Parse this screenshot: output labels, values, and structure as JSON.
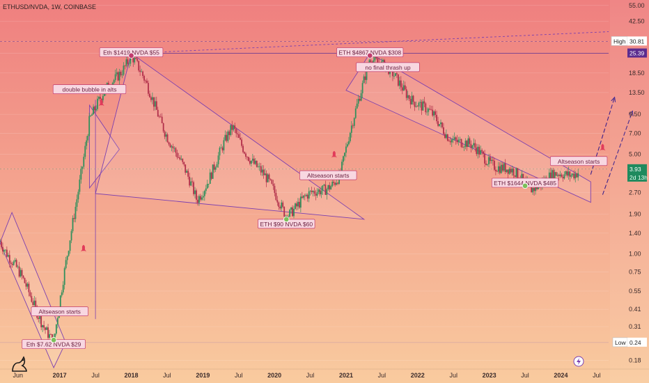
{
  "chart_data": {
    "type": "candlestick",
    "title": "ETHUSD/NVDA, 1W, COINBASE",
    "y_scale": "log",
    "ylim": [
      0.16,
      60
    ],
    "y_ticks": [
      "55.00",
      "42.50",
      "30.81",
      "25.39",
      "18.50",
      "13.50",
      "9.50",
      "7.00",
      "5.00",
      "3.93",
      "2.70",
      "1.90",
      "1.40",
      "1.00",
      "0.75",
      "0.55",
      "0.41",
      "0.31",
      "0.24",
      "0.18"
    ],
    "y_tick_values": [
      55,
      42.5,
      30.81,
      25.39,
      18.5,
      13.5,
      9.5,
      7,
      5,
      3.93,
      2.7,
      1.9,
      1.4,
      1,
      0.75,
      0.55,
      0.41,
      0.31,
      0.24,
      0.18
    ],
    "x_tick_labels": [
      "Jun",
      "2017",
      "Jul",
      "2018",
      "Jul",
      "2019",
      "Jul",
      "2020",
      "Jul",
      "2021",
      "Jul",
      "2022",
      "Jul",
      "2023",
      "Jul",
      "2024",
      "Jul"
    ],
    "x_range": [
      "2016-03",
      "2024-09"
    ],
    "badges": {
      "high_label": "High",
      "high_value": "30.81",
      "line_value": "25.39",
      "last_value": "3.93",
      "countdown": "2d 13h",
      "low_label": "Low",
      "low_value": "0.24"
    },
    "annotations": [
      {
        "text": "Eth $1419 NVDA $55",
        "date": "2018-01",
        "value": 25.4
      },
      {
        "text": "ETH $4867 NVDA $308",
        "date": "2021-05",
        "value": 25.4
      },
      {
        "text": "double bubble in alts",
        "date": "2017-06",
        "value": 14
      },
      {
        "text": "no final thrash up",
        "date": "2021-08",
        "value": 20
      },
      {
        "text": "Altseason starts",
        "date": "2017-01",
        "value": 0.39
      },
      {
        "text": "Altseason starts",
        "date": "2020-10",
        "value": 3.5
      },
      {
        "text": "Altseason starts",
        "date": "2024-04",
        "value": 4.4
      },
      {
        "text": "ETH $90 NVDA $60",
        "date": "2020-03",
        "value": 1.6
      },
      {
        "text": "ETH $1644 NVDA $485",
        "date": "2023-07",
        "value": 3.1
      },
      {
        "text": "Eth $7.62 NVDA $29",
        "date": "2016-12",
        "value": 0.23
      }
    ],
    "key_points": [
      {
        "date": "2016-03",
        "value": 1.3
      },
      {
        "date": "2016-12",
        "value": 0.24
      },
      {
        "date": "2017-06",
        "value": 9
      },
      {
        "date": "2018-01",
        "value": 25.39
      },
      {
        "date": "2018-12",
        "value": 2.4
      },
      {
        "date": "2019-06",
        "value": 7.5
      },
      {
        "date": "2020-03",
        "value": 1.95
      },
      {
        "date": "2020-12",
        "value": 3.5
      },
      {
        "date": "2021-05",
        "value": 25.39
      },
      {
        "date": "2022-06",
        "value": 7
      },
      {
        "date": "2023-08",
        "value": 3.0
      },
      {
        "date": "2024-04",
        "value": 3.93
      }
    ],
    "icons": [
      "tradingview-logo-icon",
      "lightning-icon",
      "rocket-icon"
    ]
  },
  "colors": {
    "bg_top": "#ef7f7f",
    "bg_bottom": "#f9cb9f",
    "up": "#2f8f5b",
    "down": "#b12f4a",
    "trend": "#7b3fb0",
    "annotation_bg": "#f8d7e1",
    "annotation_border": "#c23b6d",
    "badge_purple": "#5b2c8f",
    "badge_green": "#1f8a5e"
  }
}
